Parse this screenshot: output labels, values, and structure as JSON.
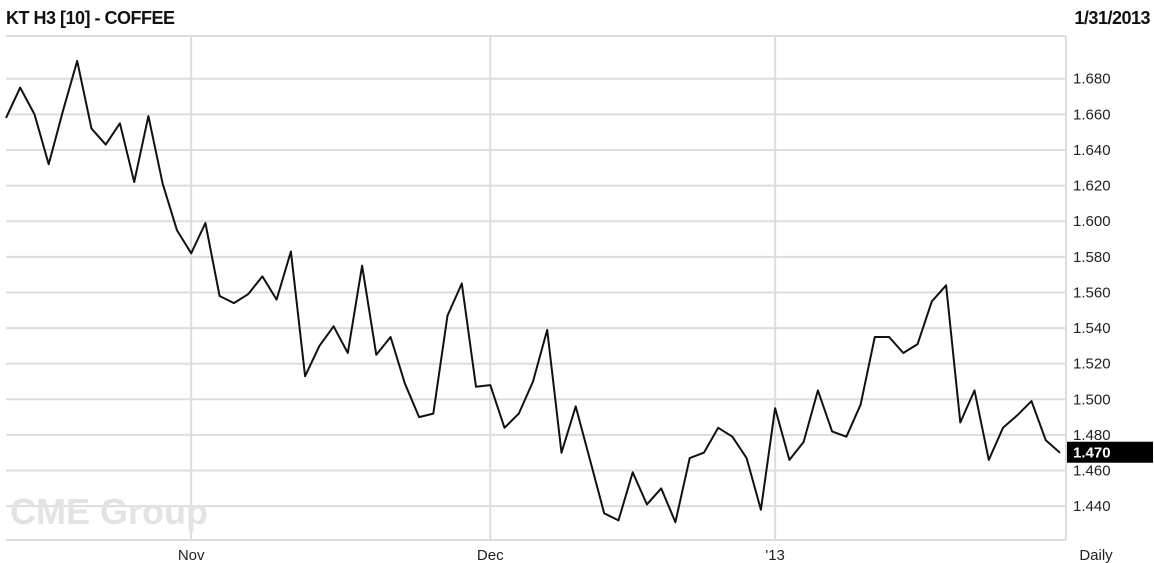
{
  "header": {
    "title": "KT H3 [10] - COFFEE",
    "date": "1/31/2013"
  },
  "watermark": "CME Group",
  "chart_data": {
    "type": "line",
    "title": "KT H3 [10] - COFFEE",
    "period_label": "Daily",
    "ylim": [
      1.421,
      1.704
    ],
    "yticks": [
      "1.440",
      "1.460",
      "1.480",
      "1.500",
      "1.520",
      "1.540",
      "1.560",
      "1.580",
      "1.600",
      "1.620",
      "1.640",
      "1.660",
      "1.680"
    ],
    "xticks": [
      {
        "label": "Nov",
        "index": 13
      },
      {
        "label": "Dec",
        "index": 34
      },
      {
        "label": "'13",
        "index": 54
      }
    ],
    "last_value_label": "1.470",
    "grid": true,
    "values": [
      1.658,
      1.675,
      1.66,
      1.632,
      1.662,
      1.69,
      1.652,
      1.643,
      1.655,
      1.622,
      1.659,
      1.621,
      1.595,
      1.582,
      1.599,
      1.558,
      1.554,
      1.559,
      1.569,
      1.556,
      1.583,
      1.513,
      1.53,
      1.541,
      1.526,
      1.575,
      1.525,
      1.535,
      1.509,
      1.49,
      1.492,
      1.547,
      1.565,
      1.507,
      1.508,
      1.484,
      1.492,
      1.51,
      1.539,
      1.47,
      1.496,
      1.466,
      1.436,
      1.432,
      1.459,
      1.441,
      1.45,
      1.431,
      1.467,
      1.47,
      1.484,
      1.479,
      1.467,
      1.438,
      1.495,
      1.466,
      1.476,
      1.505,
      1.482,
      1.479,
      1.497,
      1.535,
      1.535,
      1.526,
      1.531,
      1.555,
      1.564,
      1.487,
      1.505,
      1.466,
      1.484,
      1.491,
      1.499,
      1.477,
      1.47
    ],
    "colors": {
      "line": "#111111",
      "grid": "#dddddd",
      "last_box": "#000000"
    }
  }
}
